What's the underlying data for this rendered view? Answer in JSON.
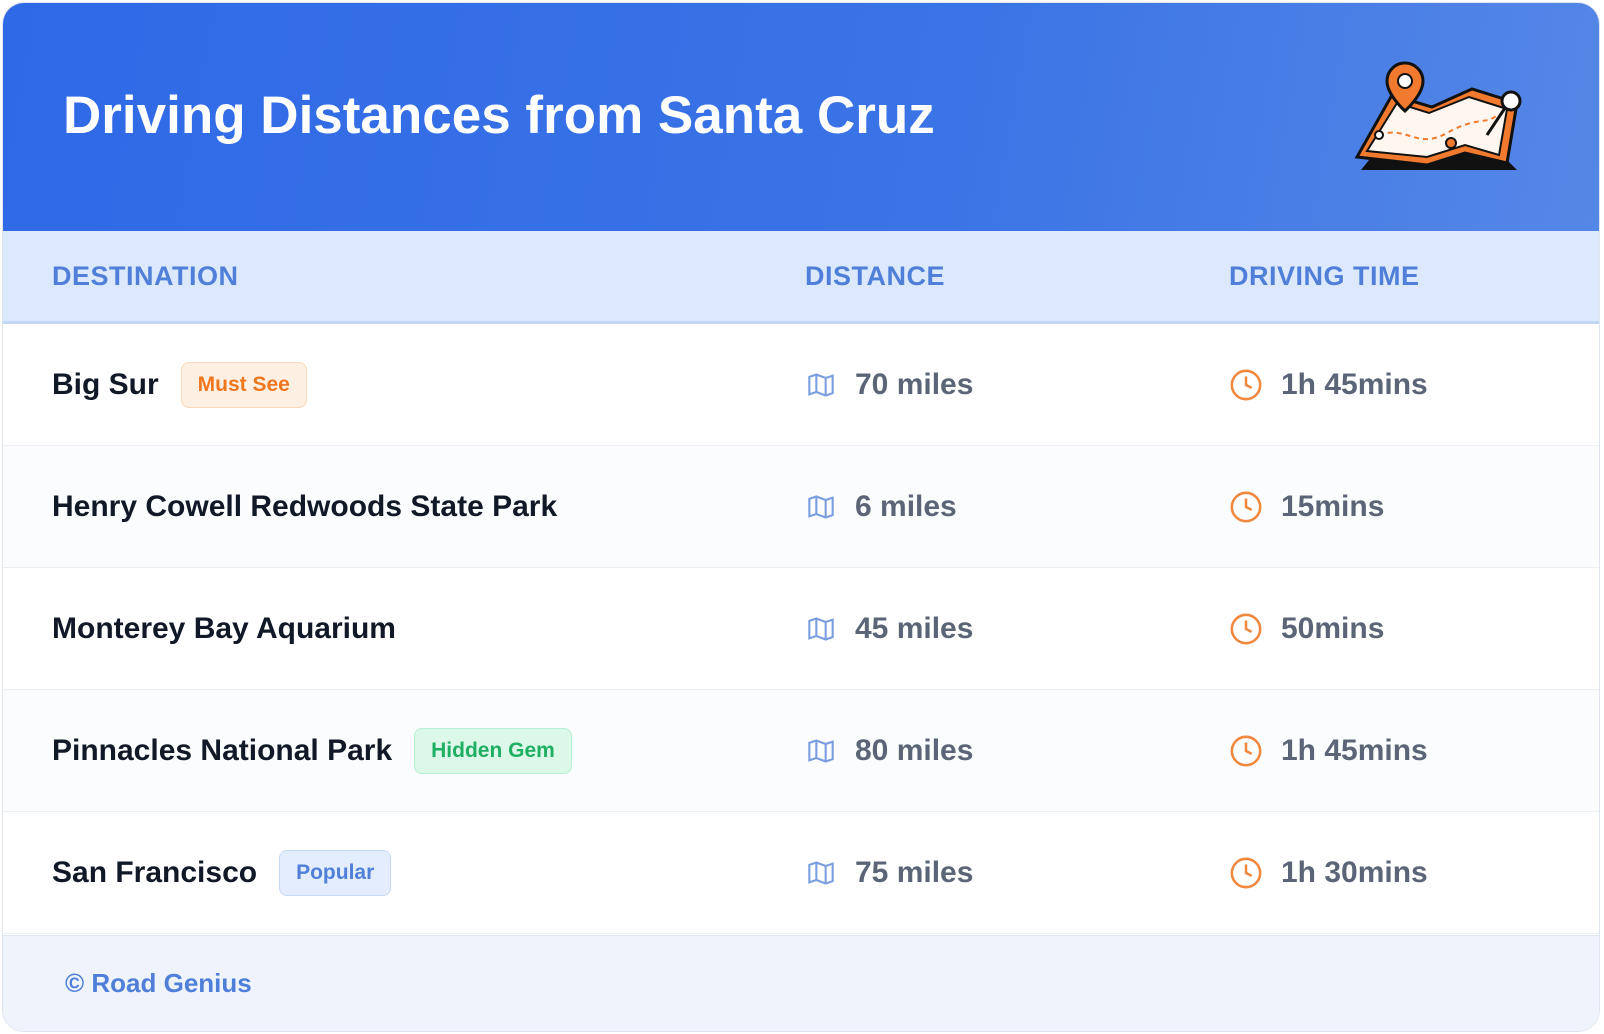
{
  "header": {
    "title": "Driving Distances from Santa Cruz"
  },
  "table": {
    "columns": [
      "DESTINATION",
      "DISTANCE",
      "DRIVING TIME"
    ],
    "rows": [
      {
        "destination": "Big Sur",
        "badge": "Must See",
        "distance": "70 miles",
        "time": "1h 45mins"
      },
      {
        "destination": "Henry Cowell Redwoods State Park",
        "distance": "6 miles",
        "time": "15mins"
      },
      {
        "destination": "Monterey Bay Aquarium",
        "distance": "45 miles",
        "time": "50mins"
      },
      {
        "destination": "Pinnacles National Park",
        "badge": "Hidden Gem",
        "distance": "80 miles",
        "time": "1h 45mins"
      },
      {
        "destination": "San Francisco",
        "badge": "Popular",
        "distance": "75 miles",
        "time": "1h 30mins"
      }
    ]
  },
  "footer": {
    "credit": "© Road Genius"
  }
}
